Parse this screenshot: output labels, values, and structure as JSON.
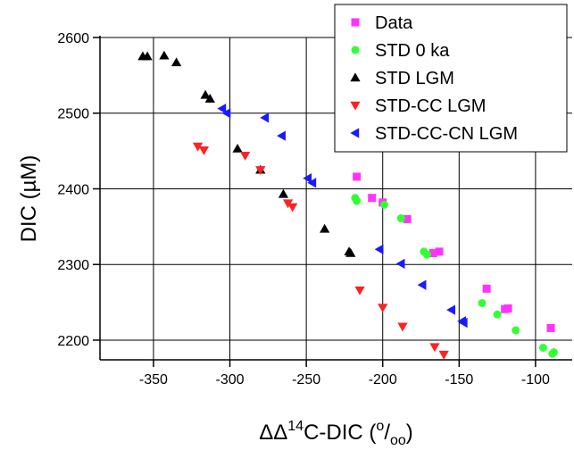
{
  "chart_data": {
    "type": "scatter",
    "xlabel_parts": [
      "ΔΔ",
      "14",
      "C-DIC (",
      "o",
      "/",
      "oo",
      ")"
    ],
    "ylabel": "DIC (µM)",
    "xlim": [
      -385,
      -76
    ],
    "ylim": [
      2174,
      2600
    ],
    "xticks": [
      -350,
      -300,
      -250,
      -200,
      -150,
      -100
    ],
    "yticks": [
      2200,
      2300,
      2400,
      2500,
      2600
    ],
    "grid": true,
    "legend": "upper right",
    "series": [
      {
        "name": "Data",
        "color": "#ff33ff",
        "marker": "square",
        "x": [
          -217,
          -207,
          -200,
          -184,
          -167,
          -163,
          -132,
          -120,
          -118,
          -90
        ],
        "values": [
          2416,
          2388,
          2382,
          2360,
          2315,
          2317,
          2268,
          2241,
          2242,
          2216
        ]
      },
      {
        "name": "STD 0 ka",
        "color": "#33ff33",
        "marker": "circle",
        "x": [
          -218,
          -217,
          -199,
          -188,
          -173,
          -171,
          -135,
          -125,
          -113,
          -95,
          -88,
          -89
        ],
        "values": [
          2388,
          2384,
          2379,
          2361,
          2317,
          2313,
          2249,
          2234,
          2213,
          2190,
          2184,
          2182
        ]
      },
      {
        "name": "STD LGM",
        "color": "#000000",
        "marker": "triangle-up",
        "x": [
          -357,
          -354,
          -343,
          -335,
          -316,
          -313,
          -295,
          -280,
          -265,
          -238,
          -222,
          -221
        ],
        "values": [
          2575,
          2575,
          2576,
          2567,
          2524,
          2519,
          2453,
          2425,
          2393,
          2347,
          2317,
          2315
        ]
      },
      {
        "name": "STD-CC LGM",
        "color": "#ff2222",
        "marker": "triangle-down",
        "x": [
          -321,
          -317,
          -290,
          -280,
          -262,
          -259,
          -215,
          -200,
          -187,
          -166,
          -160
        ],
        "values": [
          2456,
          2451,
          2444,
          2425,
          2381,
          2376,
          2266,
          2243,
          2218,
          2191,
          2181
        ]
      },
      {
        "name": "STD-CC-CN LGM",
        "color": "#1a1aff",
        "marker": "triangle-left",
        "x": [
          -305,
          -302,
          -277,
          -266,
          -249,
          -246,
          -202,
          -188,
          -174,
          -155,
          -148,
          -147
        ],
        "values": [
          2506,
          2500,
          2494,
          2470,
          2414,
          2408,
          2320,
          2301,
          2273,
          2240,
          2225,
          2223
        ]
      }
    ]
  }
}
